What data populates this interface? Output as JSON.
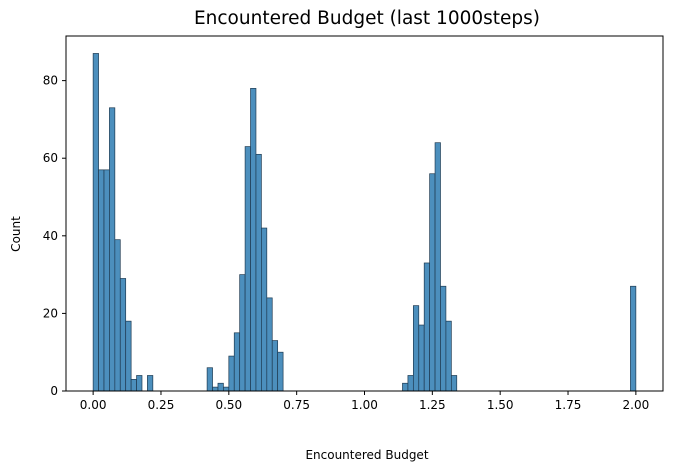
{
  "chart_data": {
    "type": "bar",
    "title": "Encountered Budget (last 1000steps)",
    "xlabel": "Encountered Budget",
    "ylabel": "Count",
    "xlim": [
      -0.1,
      2.1
    ],
    "ylim": [
      0,
      91.5
    ],
    "bin_width": 0.02,
    "xticks": [
      "0.00",
      "0.25",
      "0.50",
      "0.75",
      "1.00",
      "1.25",
      "1.50",
      "1.75",
      "2.00"
    ],
    "xtick_values": [
      0,
      0.25,
      0.5,
      0.75,
      1.0,
      1.25,
      1.5,
      1.75,
      2.0
    ],
    "yticks": [
      "0",
      "20",
      "40",
      "60",
      "80"
    ],
    "ytick_values": [
      0,
      20,
      40,
      60,
      80
    ],
    "bar_color": "#4c8fbd",
    "edge_color": "#1f3b52",
    "grid": false,
    "bins": [
      {
        "x": 0.0,
        "count": 87
      },
      {
        "x": 0.02,
        "count": 57
      },
      {
        "x": 0.04,
        "count": 57
      },
      {
        "x": 0.06,
        "count": 73
      },
      {
        "x": 0.08,
        "count": 39
      },
      {
        "x": 0.1,
        "count": 29
      },
      {
        "x": 0.12,
        "count": 18
      },
      {
        "x": 0.14,
        "count": 3
      },
      {
        "x": 0.16,
        "count": 4
      },
      {
        "x": 0.2,
        "count": 4
      },
      {
        "x": 0.42,
        "count": 6
      },
      {
        "x": 0.44,
        "count": 1
      },
      {
        "x": 0.46,
        "count": 2
      },
      {
        "x": 0.48,
        "count": 1
      },
      {
        "x": 0.5,
        "count": 9
      },
      {
        "x": 0.52,
        "count": 15
      },
      {
        "x": 0.54,
        "count": 30
      },
      {
        "x": 0.56,
        "count": 63
      },
      {
        "x": 0.58,
        "count": 78
      },
      {
        "x": 0.6,
        "count": 61
      },
      {
        "x": 0.62,
        "count": 42
      },
      {
        "x": 0.64,
        "count": 24
      },
      {
        "x": 0.66,
        "count": 13
      },
      {
        "x": 0.68,
        "count": 10
      },
      {
        "x": 1.14,
        "count": 2
      },
      {
        "x": 1.16,
        "count": 4
      },
      {
        "x": 1.18,
        "count": 22
      },
      {
        "x": 1.2,
        "count": 17
      },
      {
        "x": 1.22,
        "count": 33
      },
      {
        "x": 1.24,
        "count": 56
      },
      {
        "x": 1.26,
        "count": 64
      },
      {
        "x": 1.28,
        "count": 27
      },
      {
        "x": 1.3,
        "count": 18
      },
      {
        "x": 1.32,
        "count": 4
      },
      {
        "x": 1.98,
        "count": 27
      }
    ]
  }
}
